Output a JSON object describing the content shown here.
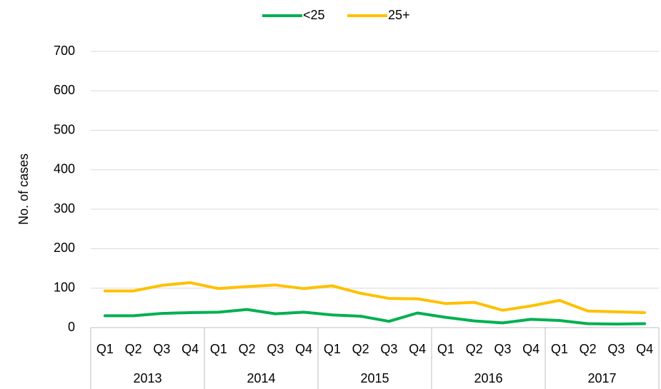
{
  "chart_data": {
    "type": "line",
    "y_label": "No. of cases",
    "categories": [
      "Q1",
      "Q2",
      "Q3",
      "Q4",
      "Q1",
      "Q2",
      "Q3",
      "Q4",
      "Q1",
      "Q2",
      "Q3",
      "Q4",
      "Q1",
      "Q2",
      "Q3",
      "Q4",
      "Q1",
      "Q2",
      "Q3",
      "Q4"
    ],
    "category_groups": [
      "2013",
      "2014",
      "2015",
      "2016",
      "2017"
    ],
    "series": [
      {
        "name": "<25",
        "color": "#00b050",
        "values": [
          30,
          30,
          36,
          38,
          39,
          46,
          35,
          39,
          32,
          29,
          16,
          37,
          26,
          17,
          12,
          21,
          18,
          10,
          9,
          10
        ]
      },
      {
        "name": "25+",
        "color": "#ffc000",
        "values": [
          93,
          93,
          107,
          114,
          99,
          104,
          108,
          99,
          106,
          87,
          74,
          73,
          61,
          64,
          44,
          55,
          69,
          42,
          40,
          38
        ]
      }
    ],
    "ylim": [
      0,
      700
    ],
    "yticks": [
      0,
      100,
      200,
      300,
      400,
      500,
      600,
      700
    ],
    "grid": true,
    "legend": "top"
  }
}
